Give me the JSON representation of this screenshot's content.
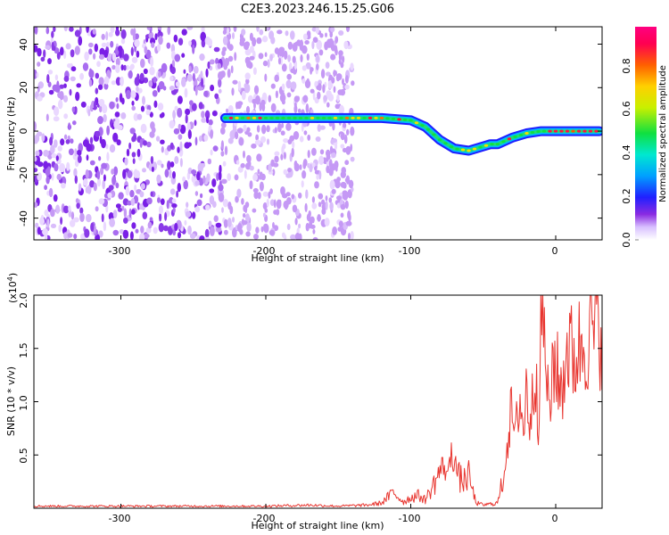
{
  "chart_data": [
    {
      "type": "heatmap",
      "title": "C2E3.2023.246.15.25.G06",
      "xlabel": "Height of straight line (km)",
      "ylabel": "Frequency (Hz)",
      "xlim": [
        -360,
        32
      ],
      "ylim": [
        -50,
        48
      ],
      "xticks": [
        "-300",
        "-200",
        "-100",
        "0"
      ],
      "yticks": [
        "40",
        "20",
        "0",
        "-20",
        "-40"
      ],
      "ridge": {
        "x": [
          -228,
          -200,
          -170,
          -145,
          -140,
          -120,
          -100,
          -90,
          -80,
          -70,
          -60,
          -50,
          -45,
          -40,
          -30,
          -20,
          -10,
          0,
          10,
          20,
          30
        ],
        "y": [
          6,
          6,
          6,
          6,
          6,
          6,
          5,
          2,
          -4,
          -8,
          -9,
          -7,
          -6,
          -6,
          -3,
          -1,
          0,
          0,
          0,
          0,
          0
        ]
      },
      "colorbar": {
        "label": "Normalized spectral amplitude",
        "ticks": [
          "0.0",
          "0.2",
          "0.4",
          "0.6",
          "0.8"
        ],
        "range": [
          0,
          0.98
        ]
      },
      "grid": false
    },
    {
      "type": "line",
      "xlabel": "Height of straight line (km)",
      "ylabel": "SNR (10 * v/v)",
      "exponent_label": "(x10",
      "exponent_power": "4",
      "exponent_close": ")",
      "xlim": [
        -360,
        32
      ],
      "ylim": [
        0,
        2.0
      ],
      "xticks": [
        "-300",
        "-200",
        "-100",
        "0"
      ],
      "yticks": [
        "2.0",
        "1.5",
        "1.0",
        "0.5"
      ],
      "color": "#e8352f",
      "series": [
        {
          "x": [
            -360,
            -300,
            -250,
            -200,
            -170,
            -150,
            -130,
            -120,
            -112,
            -105,
            -100,
            -95,
            -90,
            -85,
            -80,
            -77,
            -74,
            -72,
            -70,
            -67,
            -64,
            -60,
            -55,
            -50,
            -45,
            -40,
            -36,
            -32,
            -30,
            -28,
            -25,
            -22,
            -20,
            -18,
            -16,
            -14,
            -12,
            -10,
            -9,
            -8,
            -6,
            -4,
            -2,
            0,
            4,
            8,
            12,
            16,
            20,
            24,
            28,
            32
          ],
          "y": [
            0.02,
            0.02,
            0.02,
            0.02,
            0.03,
            0.02,
            0.03,
            0.05,
            0.15,
            0.06,
            0.1,
            0.12,
            0.08,
            0.2,
            0.35,
            0.4,
            0.3,
            0.6,
            0.45,
            0.3,
            0.25,
            0.3,
            0.05,
            0.03,
            0.04,
            0.05,
            0.3,
            0.8,
            0.9,
            0.6,
            1.1,
            0.7,
            1.2,
            0.8,
            1.0,
            1.4,
            0.9,
            1.6,
            2.0,
            1.5,
            1.3,
            0.7,
            1.5,
            1.3,
            1.1,
            1.55,
            1.4,
            1.5,
            1.6,
            1.62,
            1.68,
            1.7
          ]
        }
      ],
      "grid": false
    }
  ]
}
